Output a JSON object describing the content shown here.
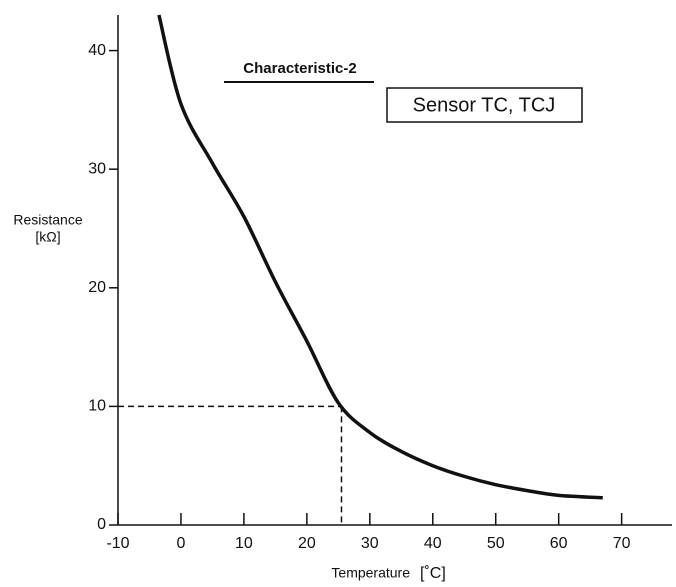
{
  "chart_data": {
    "type": "line",
    "title": "Characteristic-2",
    "annotation": "Sensor TC, TCJ",
    "xlabel": "Temperature",
    "xlabel_unit": "[˚C]",
    "ylabel": "Resistance",
    "ylabel_unit": "[kΩ]",
    "xlim": [
      -10,
      78
    ],
    "ylim": [
      0,
      43
    ],
    "xticks": [
      -10,
      0,
      10,
      20,
      30,
      40,
      50,
      60,
      70
    ],
    "yticks": [
      0,
      10,
      20,
      30,
      40
    ],
    "x": [
      -3.5,
      0,
      5,
      10,
      15,
      20,
      25,
      30,
      35,
      40,
      45,
      50,
      55,
      60,
      67
    ],
    "series": [
      {
        "name": "Sensor TC, TCJ",
        "color": "#111111",
        "values": [
          43,
          35.5,
          30.5,
          26,
          20.5,
          15.5,
          10.3,
          7.8,
          6.2,
          5,
          4.1,
          3.4,
          2.9,
          2.5,
          2.3
        ]
      }
    ],
    "reference_point": {
      "x": 25.5,
      "y": 10
    }
  }
}
